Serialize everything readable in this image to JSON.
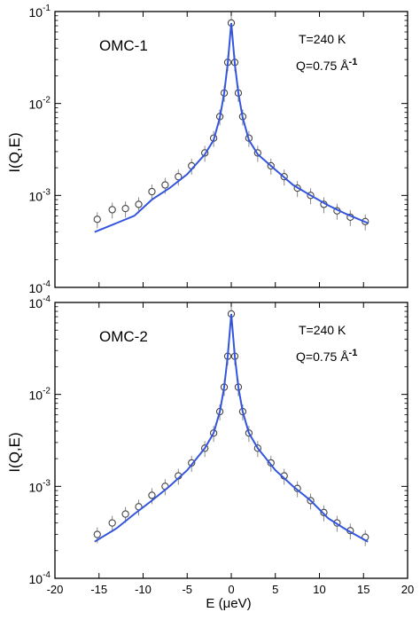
{
  "figure": {
    "ylabel": "I(Q,E)",
    "xlabel": "E (μeV)"
  },
  "chart_data": [
    {
      "type": "scatter",
      "panel_label": "OMC-1",
      "annotation_T": "T=240 K",
      "annotation_Q": "Q=0.75 Å",
      "annotation_Q_sup": "-1",
      "xlim": [
        -20,
        20
      ],
      "ylim": [
        0.0001,
        0.1
      ],
      "yscale": "log",
      "x_ticks": [
        -20,
        -15,
        -10,
        -5,
        0,
        5,
        10,
        15,
        20
      ],
      "y_ticks": [
        {
          "value": 0.1,
          "base": "10",
          "exp": "-1"
        },
        {
          "value": 0.01,
          "base": "10",
          "exp": "-2"
        },
        {
          "value": 0.001,
          "base": "10",
          "exp": "-3"
        },
        {
          "value": 0.0001,
          "base": "10",
          "exp": "-4"
        }
      ],
      "series": [
        {
          "kind": "points",
          "marker": "open-circle",
          "color": "#444444",
          "x": [
            -15.2,
            -13.5,
            -12,
            -10.5,
            -9,
            -7.5,
            -6,
            -4.5,
            -3,
            -2,
            -1.3,
            -0.8,
            -0.4,
            0,
            0.4,
            0.8,
            1.3,
            2,
            3,
            4.5,
            6,
            7.5,
            9,
            10.5,
            12,
            13.5,
            15.2
          ],
          "y": [
            0.00055,
            0.0007,
            0.00072,
            0.0008,
            0.0011,
            0.0013,
            0.0016,
            0.0021,
            0.0029,
            0.0042,
            0.0072,
            0.013,
            0.028,
            0.075,
            0.028,
            0.013,
            0.0072,
            0.0042,
            0.0029,
            0.0021,
            0.0016,
            0.0012,
            0.001,
            0.0008,
            0.00068,
            0.00058,
            0.00052
          ]
        },
        {
          "kind": "fit",
          "color": "#3355dd",
          "x": [
            -15.5,
            -13,
            -11,
            -9,
            -7,
            -5,
            -3,
            -2,
            -1.3,
            -0.8,
            -0.4,
            0,
            0.4,
            0.8,
            1.3,
            2,
            3,
            5,
            7,
            9,
            11,
            13,
            15.5
          ],
          "y": [
            0.0004,
            0.0005,
            0.0006,
            0.0009,
            0.0012,
            0.0017,
            0.0028,
            0.004,
            0.007,
            0.013,
            0.027,
            0.075,
            0.027,
            0.013,
            0.007,
            0.004,
            0.0028,
            0.0019,
            0.0013,
            0.001,
            0.00078,
            0.00063,
            0.0005
          ]
        }
      ]
    },
    {
      "type": "scatter",
      "panel_label": "OMC-2",
      "annotation_T": "T=240 K",
      "annotation_Q": "Q=0.75 Å",
      "annotation_Q_sup": "-1",
      "xlim": [
        -20,
        20
      ],
      "ylim": [
        0.0001,
        0.1
      ],
      "yscale": "log",
      "x_ticks": [
        -20,
        -15,
        -10,
        -5,
        0,
        5,
        10,
        15,
        20
      ],
      "x_tick_labels": [
        "-20",
        "-15",
        "-10",
        "-5",
        "0",
        "5",
        "10",
        "15",
        "20"
      ],
      "y_ticks": [
        {
          "value": 0.01,
          "base": "10",
          "exp": "-2"
        },
        {
          "value": 0.001,
          "base": "10",
          "exp": "-3"
        },
        {
          "value": 0.0001,
          "base": "10",
          "exp": "-4"
        }
      ],
      "top_label": {
        "base": "10",
        "exp": "-4"
      },
      "series": [
        {
          "kind": "points",
          "marker": "open-circle",
          "color": "#444444",
          "x": [
            -15.2,
            -13.5,
            -12,
            -10.5,
            -9,
            -7.5,
            -6,
            -4.5,
            -3,
            -2,
            -1.3,
            -0.8,
            -0.4,
            0,
            0.4,
            0.8,
            1.3,
            2,
            3,
            4.5,
            6,
            7.5,
            9,
            10.5,
            12,
            13.5,
            15.2
          ],
          "y": [
            0.0003,
            0.0004,
            0.0005,
            0.0006,
            0.0008,
            0.001,
            0.0013,
            0.0018,
            0.0026,
            0.0038,
            0.0065,
            0.012,
            0.026,
            0.075,
            0.026,
            0.012,
            0.0065,
            0.0038,
            0.0026,
            0.0018,
            0.0013,
            0.00095,
            0.0007,
            0.00052,
            0.0004,
            0.00033,
            0.00028
          ]
        },
        {
          "kind": "fit",
          "color": "#3355dd",
          "x": [
            -15.5,
            -13,
            -11,
            -9,
            -7,
            -5,
            -3,
            -2,
            -1.3,
            -0.8,
            -0.4,
            0,
            0.4,
            0.8,
            1.3,
            2,
            3,
            5,
            7,
            9,
            11,
            13,
            15.5
          ],
          "y": [
            0.00025,
            0.00035,
            0.0005,
            0.0007,
            0.001,
            0.0015,
            0.0026,
            0.0038,
            0.0065,
            0.012,
            0.026,
            0.075,
            0.026,
            0.012,
            0.0065,
            0.0038,
            0.0026,
            0.0015,
            0.001,
            0.0007,
            0.00045,
            0.00034,
            0.00025
          ]
        }
      ]
    }
  ]
}
